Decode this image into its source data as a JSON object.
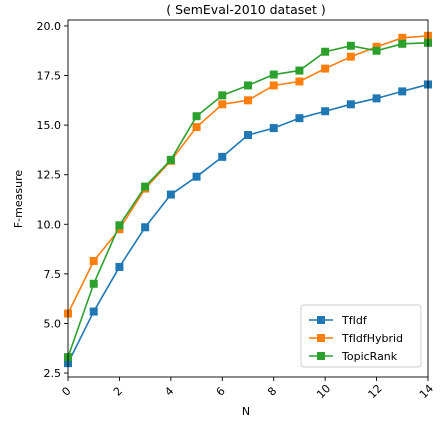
{
  "chart_data": {
    "type": "line",
    "title": "( SemEval-2010 dataset )",
    "xlabel": "N",
    "ylabel": "F-measure",
    "xlim": [
      0,
      14
    ],
    "ylim": [
      2.3,
      20.3
    ],
    "x": [
      0,
      1,
      2,
      3,
      4,
      5,
      6,
      7,
      8,
      9,
      10,
      11,
      12,
      13,
      14
    ],
    "xticks": [
      0,
      2,
      4,
      6,
      8,
      10,
      12,
      14
    ],
    "yticks": [
      2.5,
      5.0,
      7.5,
      10.0,
      12.5,
      15.0,
      17.5,
      20.0
    ],
    "xtick_labels": [
      "0",
      "2",
      "4",
      "6",
      "8",
      "10",
      "12",
      "14"
    ],
    "ytick_labels": [
      "2.5",
      "5.0",
      "7.5",
      "10.0",
      "12.5",
      "15.0",
      "17.5",
      "20.0"
    ],
    "grid": false,
    "legend_position": "lower-right",
    "series": [
      {
        "name": "TfIdf",
        "color": "#1f77b4",
        "marker": "square",
        "values": [
          3.0,
          5.6,
          7.85,
          9.85,
          11.5,
          12.4,
          13.4,
          14.5,
          14.85,
          15.35,
          15.7,
          16.05,
          16.35,
          16.7,
          17.05
        ]
      },
      {
        "name": "TfIdfHybrid",
        "color": "#ff7f0e",
        "marker": "square",
        "values": [
          5.5,
          8.15,
          9.75,
          11.8,
          13.2,
          14.9,
          16.05,
          16.25,
          17.0,
          17.2,
          17.85,
          18.45,
          18.95,
          19.4,
          19.5
        ]
      },
      {
        "name": "TopicRank",
        "color": "#2ca02c",
        "marker": "square",
        "values": [
          3.3,
          7.0,
          9.95,
          11.9,
          13.25,
          15.45,
          16.5,
          17.0,
          17.55,
          17.75,
          18.7,
          19.0,
          18.75,
          19.1,
          19.15
        ]
      }
    ]
  }
}
